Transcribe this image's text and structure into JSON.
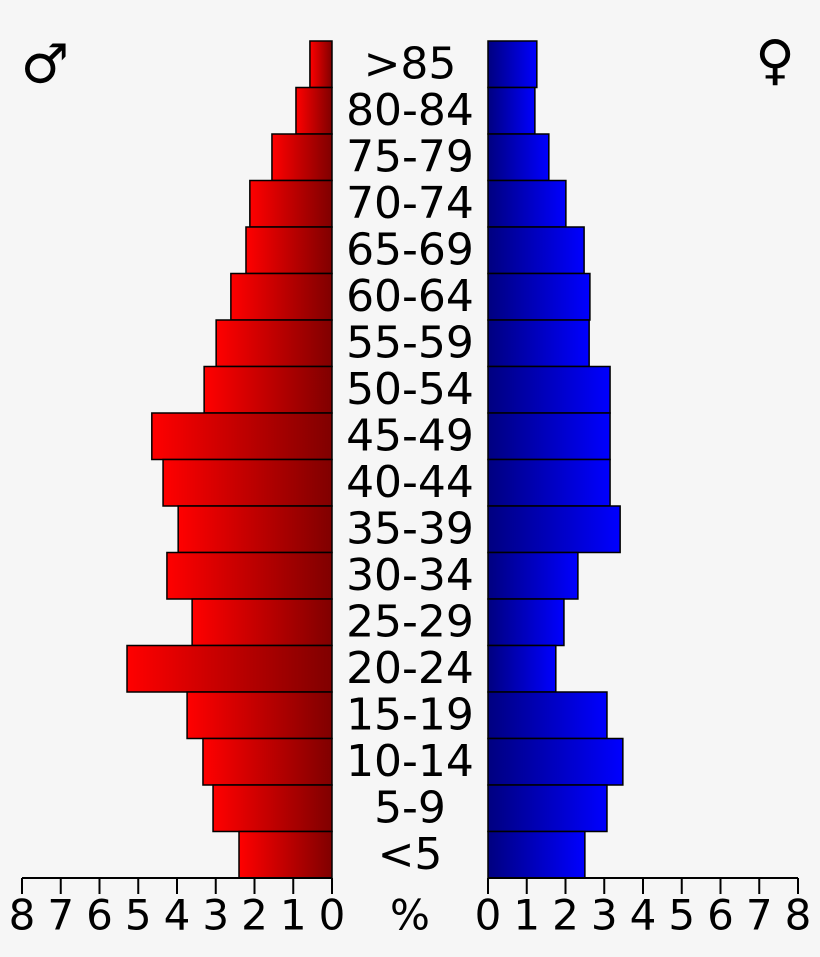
{
  "chart_data": {
    "type": "pyramid",
    "unit_label": "%",
    "categories": [
      ">85",
      "80-84",
      "75-79",
      "70-74",
      "65-69",
      "60-64",
      "55-59",
      "50-54",
      "45-49",
      "40-44",
      "35-39",
      "30-34",
      "25-29",
      "20-24",
      "15-19",
      "10-14",
      "5-9",
      "<5"
    ],
    "series": [
      {
        "name": "♂",
        "color": "#ff0000",
        "side": "left",
        "values": [
          0.57,
          0.93,
          1.55,
          2.12,
          2.22,
          2.61,
          2.99,
          3.3,
          4.65,
          4.36,
          3.97,
          4.26,
          3.61,
          5.29,
          3.74,
          3.33,
          3.07,
          2.4
        ]
      },
      {
        "name": "♀",
        "color": "#0000ff",
        "side": "right",
        "values": [
          1.26,
          1.21,
          1.57,
          2.01,
          2.48,
          2.63,
          2.61,
          3.15,
          3.15,
          3.15,
          3.41,
          2.32,
          1.96,
          1.75,
          3.07,
          3.48,
          3.07,
          2.5
        ]
      }
    ],
    "xlim": [
      0,
      8
    ],
    "xticks": [
      0,
      1,
      2,
      3,
      4,
      5,
      6,
      7,
      8
    ]
  }
}
